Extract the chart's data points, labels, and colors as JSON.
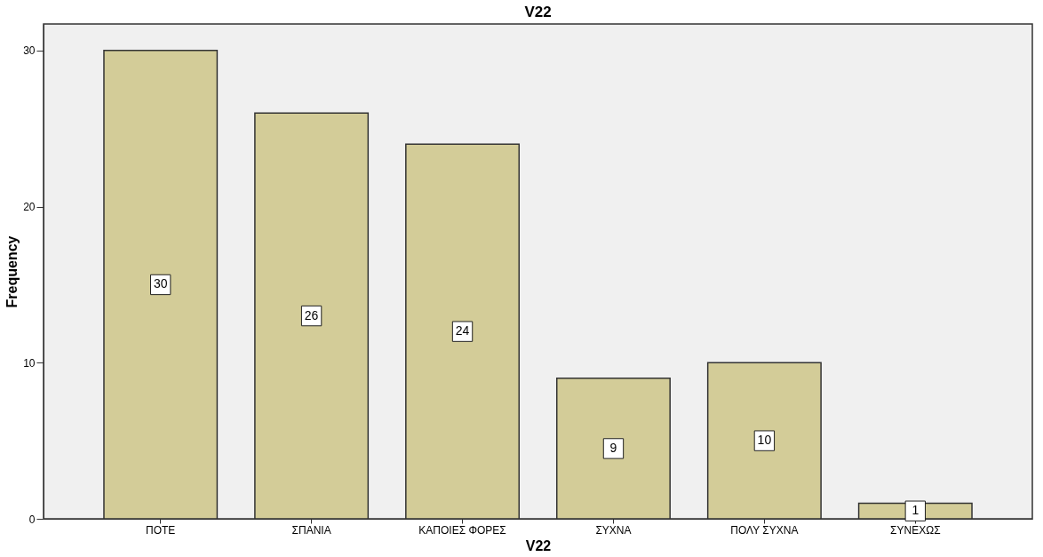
{
  "chart_data": {
    "type": "bar",
    "title": "V22",
    "xlabel": "V22",
    "ylabel": "Frequency",
    "categories": [
      "ΠΟΤΕ",
      "ΣΠΑΝΙΑ",
      "ΚΑΠΟΙΕΣ ΦΟΡΕΣ",
      "ΣΥΧΝΑ",
      "ΠΟΛΥ ΣΥΧΝΑ",
      "ΣΥΝΕΧΩΣ"
    ],
    "values": [
      30,
      26,
      24,
      9,
      10,
      1
    ],
    "color": "#d3cc98",
    "ylim": [
      0,
      31.7
    ],
    "yticks": [
      0,
      10,
      20,
      30
    ],
    "grid": false,
    "data_labels": true
  }
}
